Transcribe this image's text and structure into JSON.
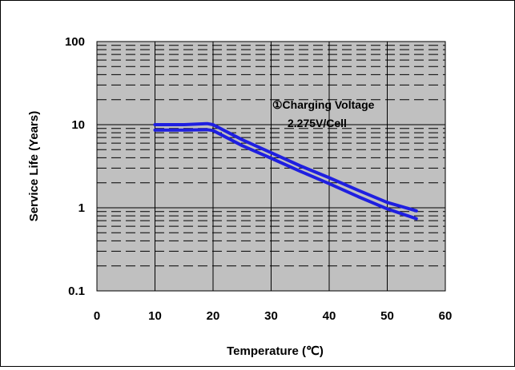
{
  "chart_data": {
    "type": "line",
    "title": "",
    "xlabel": "Temperature (℃)",
    "ylabel": "Service Life (Years)",
    "xscale": "linear",
    "yscale": "log",
    "xlim": [
      0,
      60
    ],
    "ylim": [
      0.1,
      100
    ],
    "x_ticks": [
      "0",
      "10",
      "20",
      "30",
      "40",
      "50",
      "60"
    ],
    "y_ticks": [
      "0.1",
      "1",
      "10",
      "100"
    ],
    "grid": true,
    "plot_background": "#c0c0c0",
    "annotation": [
      "①Charging Voltage",
      "2.275V/Cell"
    ],
    "series": [
      {
        "color": "#1f1fe0",
        "x": [
          10,
          15,
          19,
          20,
          25,
          30,
          35,
          40,
          45,
          50,
          55
        ],
        "y": [
          10,
          10,
          10.3,
          10,
          6.6,
          4.6,
          3.2,
          2.3,
          1.62,
          1.16,
          0.92
        ]
      },
      {
        "color": "#1f1fe0",
        "x": [
          10,
          15,
          19,
          20,
          25,
          30,
          35,
          40,
          45,
          50,
          55
        ],
        "y": [
          8.6,
          8.6,
          8.7,
          8.5,
          5.6,
          3.95,
          2.75,
          1.95,
          1.36,
          0.97,
          0.74
        ]
      }
    ]
  }
}
